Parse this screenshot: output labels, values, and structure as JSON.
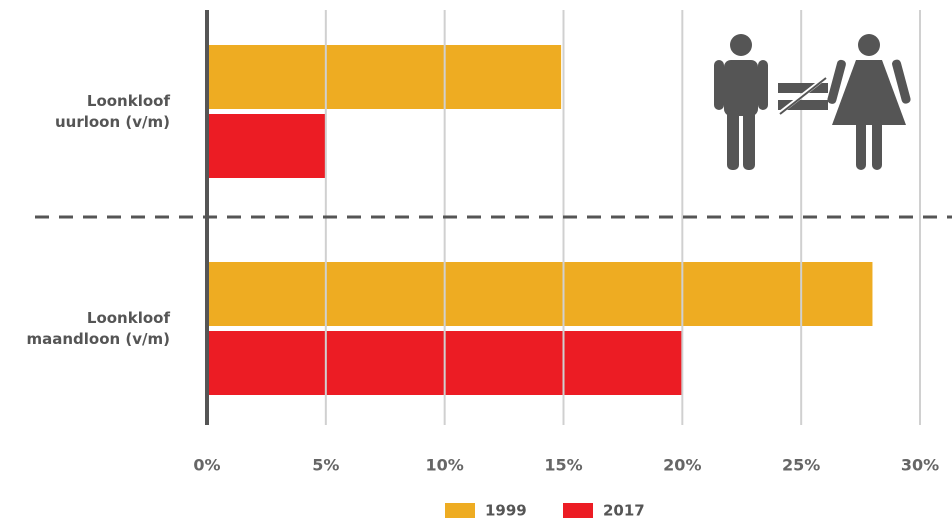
{
  "chart_data": {
    "type": "bar",
    "orientation": "horizontal",
    "categories": [
      "Loonkloof uurloon (v/m)",
      "Loonkloof maandloon (v/m)"
    ],
    "series": [
      {
        "name": "1999",
        "color": "#eeac22",
        "values": [
          14.9,
          28
        ]
      },
      {
        "name": "2017",
        "color": "#ec1c24",
        "values": [
          5,
          20
        ]
      }
    ],
    "xlim": [
      0,
      30
    ],
    "xticks": [
      {
        "value": 0,
        "label": "0%"
      },
      {
        "value": 5,
        "label": "5%"
      },
      {
        "value": 10,
        "label": "10%"
      },
      {
        "value": 15,
        "label": "15%"
      },
      {
        "value": 20,
        "label": "20%"
      },
      {
        "value": 25,
        "label": "25%"
      },
      {
        "value": 30,
        "label": "30%"
      }
    ],
    "grid": true,
    "legend": "bottom"
  }
}
